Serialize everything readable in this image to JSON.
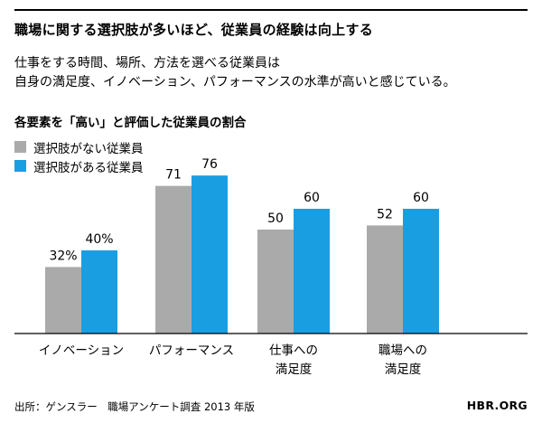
{
  "title": "職場に関する選択肢が多いほど、従業員の経験は向上する",
  "description": [
    "仕事をする時間、場所、方法を選べる従業員は",
    "自身の満足度、イノベーション、パフォーマンスの水準が高いと感じている。"
  ],
  "subtitle": "各要素を「高い」と評価した従業員の割合",
  "source": "出所：ゲンスラー　職場アンケート調査 2013 年版",
  "brand": "HBR.ORG",
  "chart_data": {
    "type": "bar",
    "categories": [
      [
        "イノベーション"
      ],
      [
        "パフォーマンス"
      ],
      [
        "仕事への",
        "満足度"
      ],
      [
        "職場への",
        "満足度"
      ]
    ],
    "series": [
      {
        "name": "選択肢がない従業員",
        "values": [
          32,
          71,
          50,
          52
        ],
        "labels": [
          "32%",
          "71",
          "50",
          "52"
        ],
        "color": "#aaaaaa"
      },
      {
        "name": "選択肢がある従業員",
        "values": [
          40,
          76,
          60,
          60
        ],
        "labels": [
          "40%",
          "76",
          "60",
          "60"
        ],
        "color": "#1a9ee2"
      }
    ],
    "ylim": [
      0,
      100
    ],
    "grid": false,
    "legend_position": "top-left",
    "xlabel": "",
    "ylabel": ""
  }
}
